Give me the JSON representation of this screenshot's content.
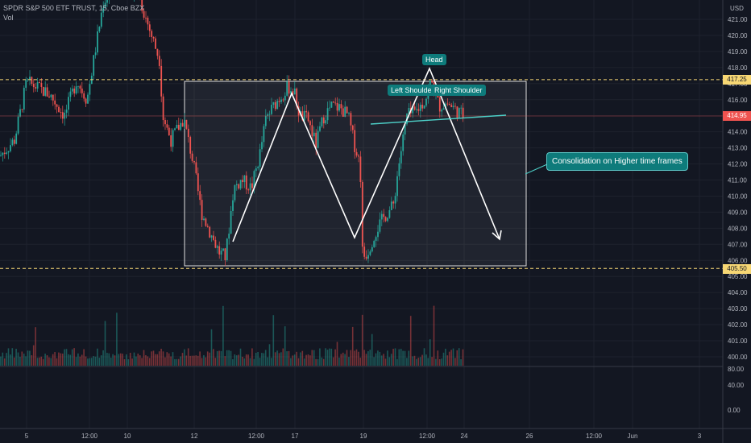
{
  "header": {
    "title": "SPDR S&P 500 ETF TRUST, 15, Cboe BZX",
    "volume_label": "Vol"
  },
  "currency": "USD",
  "chart_data": {
    "type": "candlestick",
    "symbol": "SPDR S&P 500 ETF TRUST",
    "interval": "15",
    "exchange": "Cboe BZX",
    "price_axis": {
      "range": [
        399.5,
        422.2
      ],
      "ticks": [
        400.0,
        401.0,
        402.0,
        403.0,
        404.0,
        405.0,
        406.0,
        407.0,
        408.0,
        409.0,
        410.0,
        411.0,
        412.0,
        413.0,
        414.0,
        415.0,
        416.0,
        417.0,
        418.0,
        419.0,
        420.0,
        421.0
      ]
    },
    "volume_axis": {
      "ticks": [
        "80.00",
        "40.00",
        "0.00"
      ]
    },
    "time_axis": {
      "labels": [
        "5",
        "12:00",
        "10",
        "12",
        "12:00",
        "17",
        "19",
        "12:00",
        "24",
        "26",
        "12:00",
        "Jun",
        "3"
      ]
    },
    "current_price": "414.95",
    "levels": [
      {
        "price": 417.25,
        "label": "417.25",
        "style": "dashed",
        "color": "#f7d774"
      },
      {
        "price": 405.5,
        "label": "405.50",
        "style": "dashed",
        "color": "#f7d774"
      }
    ],
    "annotations": {
      "head": "Head",
      "left_shoulder": "Left Shoulder",
      "right_shoulder": "Right Shoulder",
      "consolidation": "Consolidation on Higher time frames"
    },
    "colors": {
      "up": "#26a69a",
      "down": "#ef5350",
      "background": "#131722",
      "neckline": "#4dd0c8",
      "pattern": "#ffffff"
    },
    "grid": true
  }
}
